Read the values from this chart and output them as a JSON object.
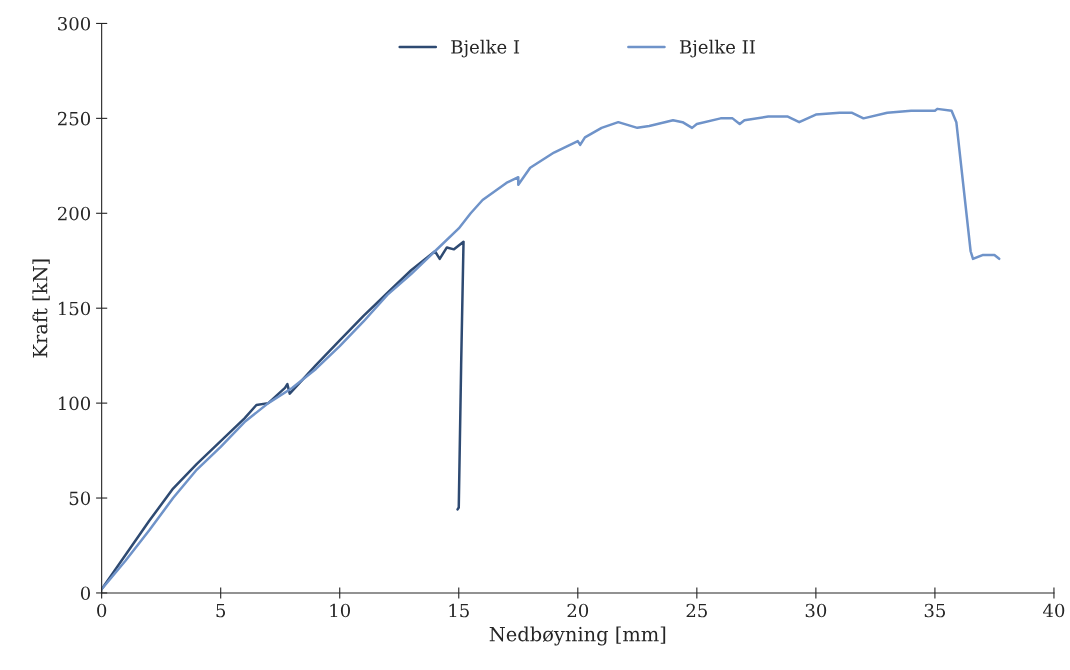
{
  "chart_data": {
    "type": "line",
    "xlabel": "Nedbøyning [mm]",
    "ylabel": "Kraft [kN]",
    "xlim": [
      0,
      40
    ],
    "xticks": [
      0,
      5,
      10,
      15,
      20,
      25,
      30,
      35,
      40
    ],
    "ylim": [
      0,
      300
    ],
    "yticks": [
      0,
      50,
      100,
      150,
      200,
      250,
      300
    ],
    "grid": false,
    "legend": "top",
    "marker": "none",
    "line_style": "solid",
    "series": [
      {
        "name": "Bjelke I",
        "color": "#2e4a72",
        "x": [
          0,
          1,
          2,
          3,
          4,
          5,
          6,
          6.5,
          7,
          7.7,
          7.8,
          7.9,
          9,
          10,
          11,
          12,
          13,
          14,
          14.2,
          14.5,
          14.8,
          15.2,
          15.1,
          15.0,
          14.95
        ],
        "values": [
          2,
          20,
          38,
          55,
          68,
          80,
          92,
          99,
          100,
          108,
          110,
          105,
          120,
          133,
          146,
          158,
          170,
          180,
          176,
          182,
          181,
          185,
          120,
          45,
          44
        ]
      },
      {
        "name": "Bjelke II",
        "color": "#6f93c9",
        "x": [
          0,
          1,
          2,
          3,
          4,
          5,
          6,
          7,
          8,
          9,
          10,
          11,
          12,
          13,
          14,
          15,
          15.5,
          16,
          17,
          17.5,
          17.5,
          18,
          19,
          20,
          20.1,
          20.3,
          21,
          21.7,
          22.5,
          23,
          24,
          24.4,
          24.8,
          25,
          26,
          26.5,
          26.8,
          27,
          28,
          28.8,
          29.3,
          30,
          31,
          31.5,
          32,
          33,
          34,
          35,
          35.1,
          35.7,
          35.9,
          36.5,
          36.6,
          37,
          37.5,
          37.7
        ],
        "values": [
          2,
          17,
          33,
          50,
          65,
          77,
          90,
          100,
          108,
          118,
          130,
          143,
          157,
          168,
          180,
          192,
          200,
          207,
          216,
          219,
          215,
          224,
          232,
          238,
          236,
          240,
          245,
          248,
          245,
          246,
          249,
          248,
          245,
          247,
          250,
          250,
          247,
          249,
          251,
          251,
          248,
          252,
          253,
          253,
          250,
          253,
          254,
          254,
          255,
          254,
          248,
          180,
          176,
          178,
          178,
          176
        ]
      }
    ]
  }
}
